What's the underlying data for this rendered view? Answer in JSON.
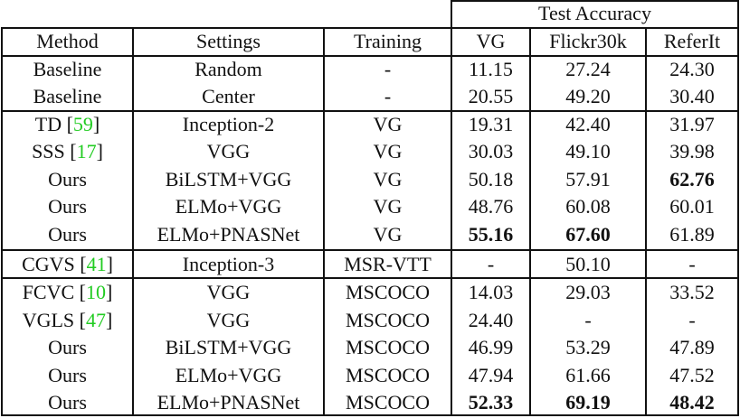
{
  "table": {
    "group_header": "Test Accuracy",
    "columns": [
      "Method",
      "Settings",
      "Training",
      "VG",
      "Flickr30k",
      "ReferIt"
    ],
    "rows": [
      {
        "method": "Baseline",
        "ref": "",
        "settings": "Random",
        "training": "-",
        "vg": "11.15",
        "flickr": "27.24",
        "referit": "24.30",
        "bold": []
      },
      {
        "method": "Baseline",
        "ref": "",
        "settings": "Center",
        "training": "-",
        "vg": "20.55",
        "flickr": "49.20",
        "referit": "30.40",
        "bold": []
      },
      {
        "method": "TD",
        "ref": "59",
        "settings": "Inception-2",
        "training": "VG",
        "vg": "19.31",
        "flickr": "42.40",
        "referit": "31.97",
        "bold": []
      },
      {
        "method": "SSS",
        "ref": "17",
        "settings": "VGG",
        "training": "VG",
        "vg": "30.03",
        "flickr": "49.10",
        "referit": "39.98",
        "bold": []
      },
      {
        "method": "Ours",
        "ref": "",
        "settings": "BiLSTM+VGG",
        "training": "VG",
        "vg": "50.18",
        "flickr": "57.91",
        "referit": "62.76",
        "bold": [
          "referit"
        ]
      },
      {
        "method": "Ours",
        "ref": "",
        "settings": "ELMo+VGG",
        "training": "VG",
        "vg": "48.76",
        "flickr": "60.08",
        "referit": "60.01",
        "bold": []
      },
      {
        "method": "Ours",
        "ref": "",
        "settings": "ELMo+PNASNet",
        "training": "VG",
        "vg": "55.16",
        "flickr": "67.60",
        "referit": "61.89",
        "bold": [
          "vg",
          "flickr"
        ]
      },
      {
        "method": "CGVS",
        "ref": "41",
        "settings": "Inception-3",
        "training": "MSR-VTT",
        "vg": "-",
        "flickr": "50.10",
        "referit": "-",
        "bold": []
      },
      {
        "method": "FCVC",
        "ref": "10",
        "settings": "VGG",
        "training": "MSCOCO",
        "vg": "14.03",
        "flickr": "29.03",
        "referit": "33.52",
        "bold": []
      },
      {
        "method": "VGLS",
        "ref": "47",
        "settings": "VGG",
        "training": "MSCOCO",
        "vg": "24.40",
        "flickr": "-",
        "referit": "-",
        "bold": []
      },
      {
        "method": "Ours",
        "ref": "",
        "settings": "BiLSTM+VGG",
        "training": "MSCOCO",
        "vg": "46.99",
        "flickr": "53.29",
        "referit": "47.89",
        "bold": []
      },
      {
        "method": "Ours",
        "ref": "",
        "settings": "ELMo+VGG",
        "training": "MSCOCO",
        "vg": "47.94",
        "flickr": "61.66",
        "referit": "47.52",
        "bold": []
      },
      {
        "method": "Ours",
        "ref": "",
        "settings": "ELMo+PNASNet",
        "training": "MSCOCO",
        "vg": "52.33",
        "flickr": "69.19",
        "referit": "48.42",
        "bold": [
          "vg",
          "flickr",
          "referit"
        ]
      }
    ]
  },
  "colors": {
    "text": "#111111",
    "citation": "#22cc22",
    "rule": "#111111"
  }
}
